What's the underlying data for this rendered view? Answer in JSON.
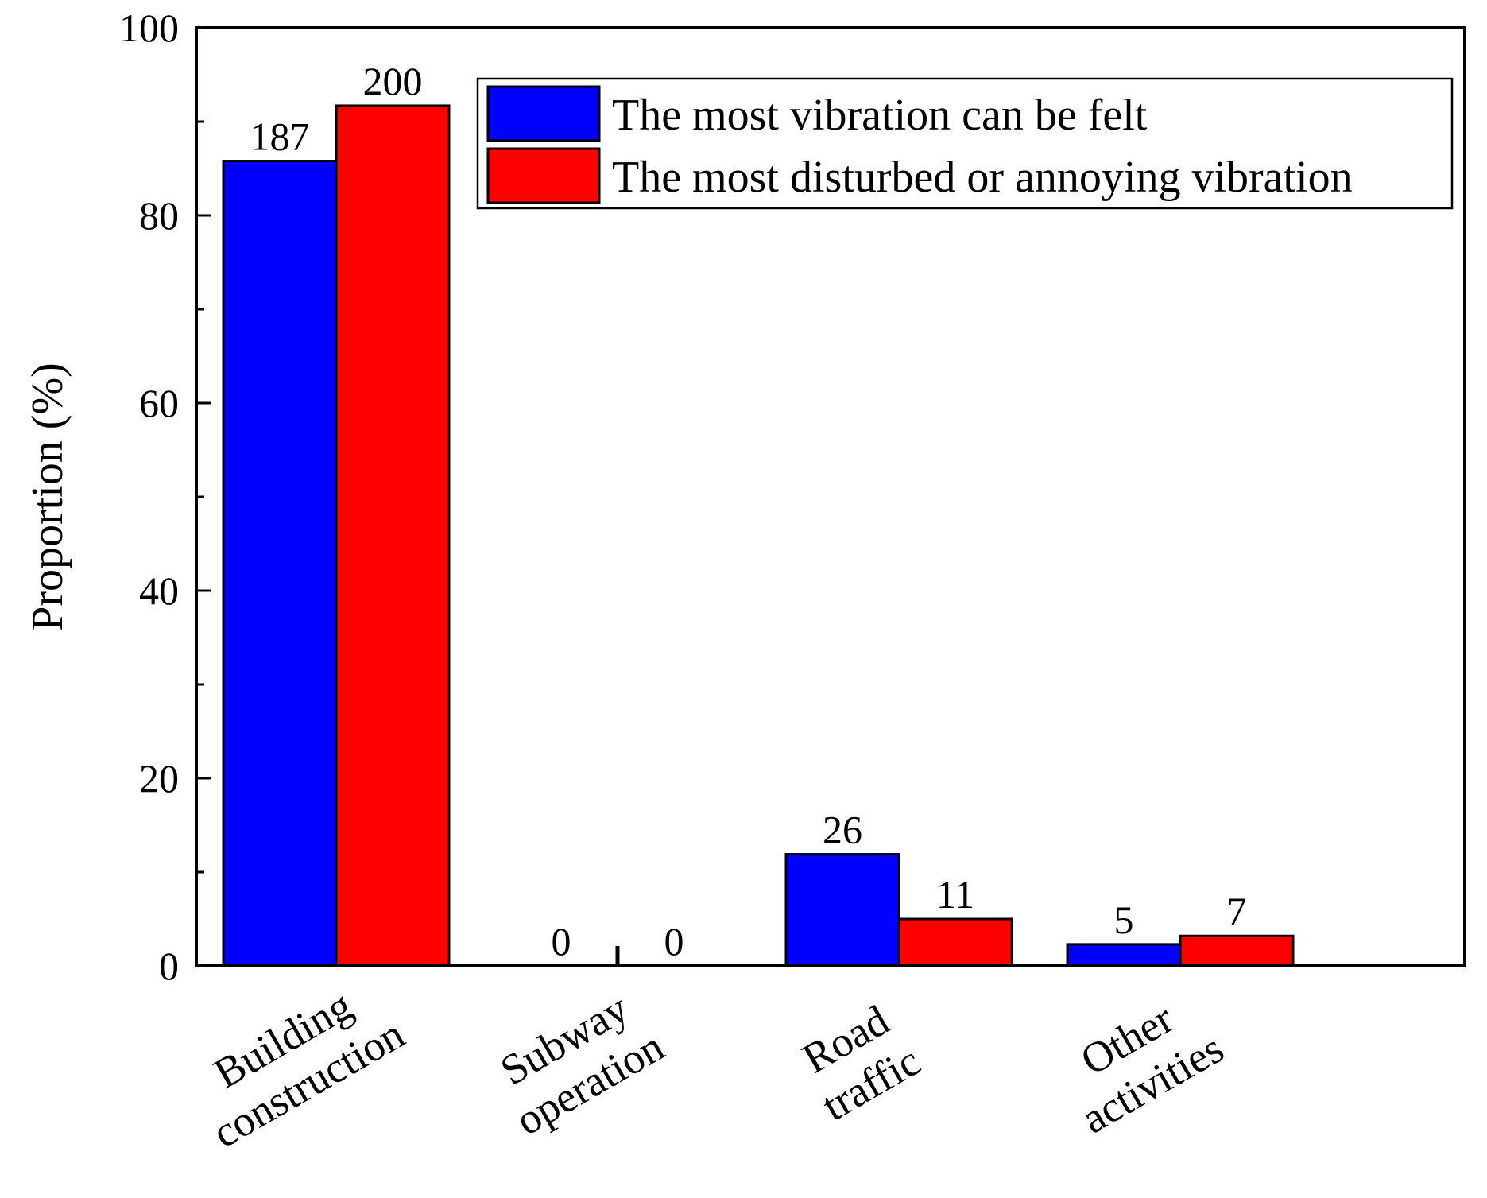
{
  "chart_data": {
    "type": "bar",
    "title": "",
    "xlabel": "",
    "ylabel": "Proportion (%)",
    "ylim": [
      0,
      100
    ],
    "yticks": [
      "0",
      "20",
      "40",
      "60",
      "80",
      "100"
    ],
    "grid": false,
    "legend_position": "top-right",
    "categories": [
      [
        "Building",
        "construction"
      ],
      [
        "Subway",
        "operation"
      ],
      [
        "Road",
        "traffic"
      ],
      [
        "Other",
        "activities"
      ]
    ],
    "series": [
      {
        "name": "The most vibration can be felt",
        "color": "#0000FF",
        "values": [
          85.8,
          0,
          11.9,
          2.3
        ],
        "labels": [
          "187",
          "0",
          "26",
          "5"
        ]
      },
      {
        "name": "The most disturbed or annoying vibration",
        "color": "#FF0000",
        "values": [
          91.7,
          0,
          5.0,
          3.2
        ],
        "labels": [
          "200",
          "0",
          "11",
          "7"
        ]
      }
    ]
  }
}
